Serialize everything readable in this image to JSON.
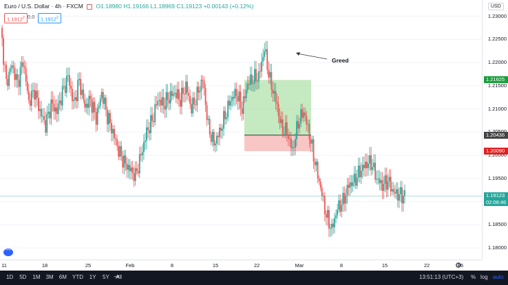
{
  "header": {
    "symbol": "Euro / U.S. Dollar · 4h · FXCM",
    "open": "O1.18980",
    "high": "H1.19166",
    "low": "L1.18969",
    "close": "C1.19123",
    "change": "+0.00143 (+0.12%)"
  },
  "trade": {
    "sell_price": "1.1912",
    "spread": "0.0",
    "buy_price": "1.1912"
  },
  "annotation": {
    "text": "Greed"
  },
  "price_axis": {
    "currency": "USD",
    "ticks": [
      "1.23000",
      "1.22500",
      "1.22000",
      "1.21500",
      "1.21000",
      "1.20500",
      "1.20000",
      "1.19500",
      "1.19000",
      "1.18500",
      "1.18000"
    ]
  },
  "price_tags": {
    "target": "1.21625",
    "entry": "1.20436",
    "stop": "1.20090",
    "current": "1.19123",
    "countdown": "02:08:46"
  },
  "time_axis": {
    "labels": [
      "11",
      "18",
      "25",
      "Feb",
      "8",
      "15",
      "22",
      "Mar",
      "8",
      "15",
      "22",
      "26"
    ]
  },
  "bottom_bar": {
    "ranges": [
      "1D",
      "5D",
      "1M",
      "3M",
      "6M",
      "YTD",
      "1Y",
      "5Y",
      "All"
    ],
    "time": "13:51:13 (UTC+3)",
    "percent": "%",
    "log": "log",
    "auto": "auto"
  },
  "colors": {
    "up": "#26a69a",
    "down": "#ef5350",
    "target_zone": "#b7e4b0",
    "stop_zone": "#f7b8b8",
    "target_tag": "#1b9e3e",
    "stop_tag": "#e02020",
    "entry_tag": "#444444",
    "current_tag": "#26a69a"
  },
  "chart_data": {
    "type": "candlestick",
    "ylim": [
      1.1775,
      1.2335
    ],
    "price_waypoints": [
      1.2275,
      1.2155,
      1.2195,
      1.2155,
      1.2205,
      1.2115,
      1.214,
      1.2095,
      1.2065,
      1.211,
      1.2095,
      1.2135,
      1.217,
      1.211,
      1.216,
      1.2105,
      1.212,
      1.208,
      1.2135,
      1.2085,
      1.205,
      1.201,
      1.1985,
      1.197,
      1.1955,
      1.2,
      1.205,
      1.2075,
      1.212,
      1.211,
      1.2125,
      1.2135,
      1.212,
      1.215,
      1.21,
      1.213,
      1.2165,
      1.206,
      1.2025,
      1.205,
      1.2085,
      1.212,
      1.2135,
      1.21,
      1.2155,
      1.2165,
      1.217,
      1.223,
      1.216,
      1.212,
      1.206,
      1.205,
      1.201,
      1.207,
      1.2095,
      1.2045,
      1.1985,
      1.193,
      1.187,
      1.184,
      1.1885,
      1.19,
      1.1935,
      1.1945,
      1.1965,
      1.198,
      1.1985,
      1.195,
      1.1935,
      1.1945,
      1.192,
      1.1915,
      1.1912
    ]
  }
}
